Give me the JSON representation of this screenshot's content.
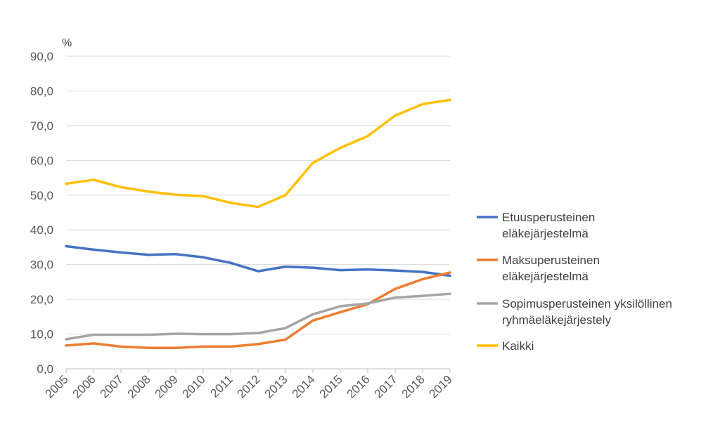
{
  "chart_data": {
    "type": "line",
    "title": "",
    "xlabel": "",
    "ylabel": "",
    "y_unit": "%",
    "ylim": [
      0,
      90
    ],
    "y_ticks": [
      "0,0",
      "10,0",
      "20,0",
      "30,0",
      "40,0",
      "50,0",
      "60,0",
      "70,0",
      "80,0",
      "90,0"
    ],
    "grid": "horizontal",
    "legend_position": "right",
    "categories": [
      "2005",
      "2006",
      "2007",
      "2008",
      "2009",
      "2010",
      "2011",
      "2012",
      "2013",
      "2014",
      "2015",
      "2016",
      "2017",
      "2018",
      "2019"
    ],
    "series": [
      {
        "name_lines": [
          "Etuusperusteinen",
          "eläkejärjestelmä"
        ],
        "color": "#4472C4",
        "values": [
          35.3,
          34.3,
          33.5,
          32.8,
          33.0,
          32.1,
          30.5,
          28.1,
          29.4,
          29.1,
          28.4,
          28.6,
          28.3,
          27.9,
          26.8
        ]
      },
      {
        "name_lines": [
          "Maksuperusteinen",
          "eläkejärjestelmä"
        ],
        "color": "#ED7D31",
        "values": [
          6.7,
          7.3,
          6.4,
          6.0,
          6.0,
          6.4,
          6.4,
          7.1,
          8.4,
          13.9,
          16.3,
          18.6,
          23.0,
          25.8,
          27.7
        ]
      },
      {
        "name_lines": [
          "Sopimusperusteinen yksilöllinen",
          "ryhmäeläkejärjestely"
        ],
        "color": "#A5A5A5",
        "values": [
          8.5,
          9.8,
          9.8,
          9.8,
          10.1,
          10.0,
          10.0,
          10.3,
          11.7,
          15.7,
          18.0,
          18.8,
          20.5,
          21.0,
          21.6
        ]
      },
      {
        "name_lines": [
          "Kaikki"
        ],
        "color": "#FFC000",
        "values": [
          53.3,
          54.4,
          52.3,
          51.0,
          50.1,
          49.7,
          47.8,
          46.6,
          50.0,
          59.3,
          63.6,
          67.0,
          72.9,
          76.2,
          77.4
        ]
      }
    ]
  }
}
